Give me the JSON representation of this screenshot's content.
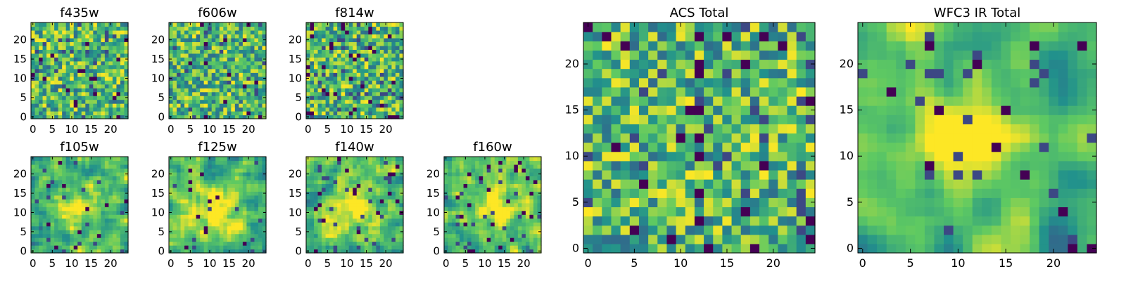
{
  "figure": {
    "colormap": [
      "#440154",
      "#3b528b",
      "#21918c",
      "#5ec962",
      "#fde725"
    ]
  },
  "chart_data": [
    {
      "type": "heatmap",
      "title": "f435w",
      "grid_size": 25,
      "xlim": [
        -0.5,
        24.5
      ],
      "ylim": [
        -0.5,
        24.5
      ],
      "xticks": [
        0,
        5,
        10,
        15,
        20
      ],
      "yticks": [
        0,
        5,
        10,
        15,
        20
      ],
      "pattern": "uniform-noise",
      "smoothness": 0,
      "seed": 11,
      "dark_fraction": 0.03,
      "blob": null
    },
    {
      "type": "heatmap",
      "title": "f606w",
      "grid_size": 25,
      "xlim": [
        -0.5,
        24.5
      ],
      "ylim": [
        -0.5,
        24.5
      ],
      "xticks": [
        0,
        5,
        10,
        15,
        20
      ],
      "yticks": [
        0,
        5,
        10,
        15,
        20
      ],
      "pattern": "uniform-noise",
      "smoothness": 0,
      "seed": 23,
      "dark_fraction": 0.02,
      "blob": null
    },
    {
      "type": "heatmap",
      "title": "f814w",
      "grid_size": 25,
      "xlim": [
        -0.5,
        24.5
      ],
      "ylim": [
        -0.5,
        24.5
      ],
      "xticks": [
        0,
        5,
        10,
        15,
        20
      ],
      "yticks": [
        0,
        5,
        10,
        15,
        20
      ],
      "pattern": "uniform-noise",
      "smoothness": 0,
      "seed": 37,
      "dark_fraction": 0.04,
      "blob": null
    },
    {
      "type": "heatmap",
      "title": "f105w",
      "grid_size": 25,
      "xlim": [
        -0.5,
        24.5
      ],
      "ylim": [
        -0.5,
        24.5
      ],
      "xticks": [
        0,
        5,
        10,
        15,
        20
      ],
      "yticks": [
        0,
        5,
        10,
        15,
        20
      ],
      "pattern": "smooth-noise",
      "smoothness": 1,
      "seed": 41,
      "dark_fraction": 0.02,
      "blob": [
        12,
        11,
        4,
        0.35
      ]
    },
    {
      "type": "heatmap",
      "title": "f125w",
      "grid_size": 25,
      "xlim": [
        -0.5,
        24.5
      ],
      "ylim": [
        -0.5,
        24.5
      ],
      "xticks": [
        0,
        5,
        10,
        15,
        20
      ],
      "yticks": [
        0,
        5,
        10,
        15,
        20
      ],
      "pattern": "smooth-noise",
      "smoothness": 1,
      "seed": 53,
      "dark_fraction": 0.02,
      "blob": [
        12,
        10,
        4,
        0.35
      ]
    },
    {
      "type": "heatmap",
      "title": "f140w",
      "grid_size": 25,
      "xlim": [
        -0.5,
        24.5
      ],
      "ylim": [
        -0.5,
        24.5
      ],
      "xticks": [
        0,
        5,
        10,
        15,
        20
      ],
      "yticks": [
        0,
        5,
        10,
        15,
        20
      ],
      "pattern": "smooth-noise",
      "smoothness": 1,
      "seed": 67,
      "dark_fraction": 0.03,
      "blob": [
        11,
        12,
        4,
        0.35
      ]
    },
    {
      "type": "heatmap",
      "title": "f160w",
      "grid_size": 25,
      "xlim": [
        -0.5,
        24.5
      ],
      "ylim": [
        -0.5,
        24.5
      ],
      "xticks": [
        0,
        5,
        10,
        15,
        20
      ],
      "yticks": [
        0,
        5,
        10,
        15,
        20
      ],
      "pattern": "smooth-noise",
      "smoothness": 1,
      "seed": 79,
      "dark_fraction": 0.03,
      "blob": [
        13,
        12,
        4,
        0.35
      ]
    },
    {
      "type": "heatmap",
      "title": "ACS Total",
      "grid_size": 25,
      "xlim": [
        -0.5,
        24.5
      ],
      "ylim": [
        -0.5,
        24.5
      ],
      "xticks": [
        0,
        5,
        10,
        15,
        20
      ],
      "yticks": [
        0,
        5,
        10,
        15,
        20
      ],
      "pattern": "uniform-noise",
      "smoothness": 0,
      "seed": 97,
      "dark_fraction": 0.03,
      "blob": null
    },
    {
      "type": "heatmap",
      "title": "WFC3 IR Total",
      "grid_size": 25,
      "xlim": [
        -0.5,
        24.5
      ],
      "ylim": [
        -0.5,
        24.5
      ],
      "xticks": [
        0,
        5,
        10,
        15,
        20
      ],
      "yticks": [
        0,
        5,
        10,
        15,
        20
      ],
      "pattern": "smooth-noise",
      "smoothness": 2,
      "seed": 131,
      "dark_fraction": 0.02,
      "blob": [
        12,
        12,
        3,
        0.6
      ]
    }
  ]
}
